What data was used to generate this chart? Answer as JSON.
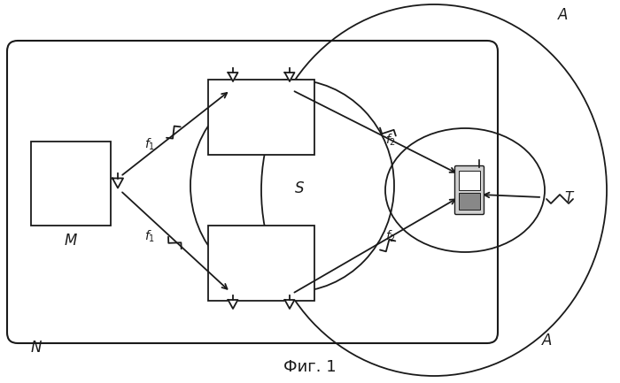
{
  "title": "Фиг. 1",
  "label_N": "N",
  "label_M": "M",
  "label_S": "S",
  "label_T": "T",
  "label_A_top": "A",
  "label_A_bot": "A",
  "label_f1_up": "f₁",
  "label_f1_dn": "f₁",
  "label_f2_up": "f₂",
  "label_f2_dn": "f₂",
  "bg_color": "#ffffff",
  "line_color": "#1a1a1a",
  "figsize": [
    7.0,
    4.33
  ],
  "dpi": 100
}
